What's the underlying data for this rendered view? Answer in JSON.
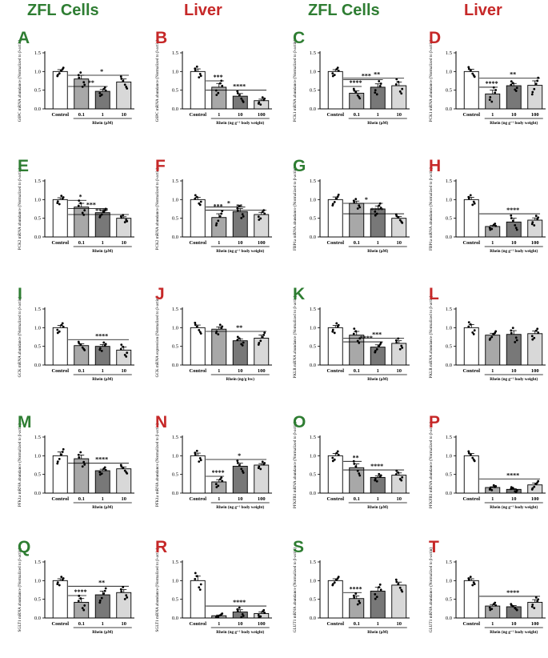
{
  "headers": [
    "ZFL Cells",
    "Liver",
    "ZFL Cells",
    "Liver"
  ],
  "colors": {
    "green": "#2e7d32",
    "red": "#c62828",
    "bar_light": "#e6e6e6",
    "bar_mid": "#a8a8a8",
    "bar_dark": "#777777"
  },
  "chart_data": [
    {
      "letter": "A",
      "type": "bar",
      "ylabel": "G6PC mRNA abundance (Normalized to β-actin)",
      "xlabel": "Rhein (µM)",
      "categories": [
        "Control",
        "0.1",
        "1",
        "10"
      ],
      "values": [
        1.0,
        0.8,
        0.47,
        0.72
      ],
      "errors": [
        0.05,
        0.1,
        0.05,
        0.08
      ],
      "ylim": [
        0,
        1.5
      ],
      "yticks": [
        "0.0",
        "0.5",
        "1.0",
        "1.5"
      ],
      "sig": [
        {
          "a": 0,
          "b": 2,
          "label": "**",
          "y": 0.6
        },
        {
          "a": 0,
          "b": 3,
          "label": "*",
          "y": 0.9
        }
      ]
    },
    {
      "letter": "B",
      "type": "bar",
      "ylabel": "G6PC mRNA abundance (Normalized to β-actin)",
      "xlabel": "Rhein (ng g⁻¹ body weight)",
      "categories": [
        "Control",
        "1",
        "10",
        "100"
      ],
      "values": [
        1.0,
        0.58,
        0.34,
        0.22
      ],
      "errors": [
        0.07,
        0.1,
        0.07,
        0.04
      ],
      "ylim": [
        0,
        1.5
      ],
      "yticks": [
        "0.0",
        "0.5",
        "1.0",
        "1.5"
      ],
      "sig": [
        {
          "a": 0,
          "b": 1,
          "label": "***",
          "y": 0.75
        },
        {
          "a": 0,
          "b": 3,
          "label": "****",
          "y": 0.5
        }
      ]
    },
    {
      "letter": "C",
      "type": "bar",
      "ylabel": "PCK1 mRNA abundance (Normalized to β-actin)",
      "xlabel": "Rhein (µM)",
      "categories": [
        "Control",
        "0.1",
        "1",
        "10"
      ],
      "values": [
        1.0,
        0.42,
        0.58,
        0.62
      ],
      "errors": [
        0.05,
        0.06,
        0.09,
        0.1
      ],
      "ylim": [
        0,
        1.5
      ],
      "yticks": [
        "0.0",
        "0.5",
        "1.0",
        "1.5"
      ],
      "sig": [
        {
          "a": 0,
          "b": 1,
          "label": "****",
          "y": 0.6
        },
        {
          "a": 0,
          "b": 2,
          "label": "***",
          "y": 0.78
        },
        {
          "a": 0,
          "b": 3,
          "label": "**",
          "y": 0.82
        }
      ]
    },
    {
      "letter": "D",
      "type": "bar",
      "ylabel": "PCK1 mRNA abundance (Normalized to β-actin)",
      "xlabel": "Rhein (ng g⁻¹ body weight)",
      "categories": [
        "Control",
        "1",
        "10",
        "100"
      ],
      "values": [
        1.0,
        0.4,
        0.62,
        0.63
      ],
      "errors": [
        0.06,
        0.1,
        0.06,
        0.12
      ],
      "ylim": [
        0,
        1.5
      ],
      "yticks": [
        "0.0",
        "0.5",
        "1.0",
        "1.5"
      ],
      "sig": [
        {
          "a": 0,
          "b": 1,
          "label": "****",
          "y": 0.58
        },
        {
          "a": 0,
          "b": 3,
          "label": "**",
          "y": 0.82
        }
      ]
    },
    {
      "letter": "E",
      "type": "bar",
      "ylabel": "PCK2 mRNA abundance (Normalized to β-actin)",
      "xlabel": "Rhein (µM)",
      "categories": [
        "Control",
        "0.1",
        "1",
        "10"
      ],
      "values": [
        1.0,
        0.8,
        0.65,
        0.5
      ],
      "errors": [
        0.05,
        0.1,
        0.05,
        0.04
      ],
      "ylim": [
        0,
        1.5
      ],
      "yticks": [
        "0.0",
        "0.5",
        "1.0",
        "1.5"
      ],
      "sig": [
        {
          "a": 0,
          "b": 1,
          "label": "*",
          "y": 0.98
        },
        {
          "a": 0,
          "b": 2,
          "label": "***",
          "y": 0.76
        },
        {
          "a": 0,
          "b": 3,
          "label": "****",
          "y": 0.6
        }
      ]
    },
    {
      "letter": "F",
      "type": "bar",
      "ylabel": "PCK2 mRNA abundance (Normalized to β-actin)",
      "xlabel": "Rhein (ng g⁻¹ body weight)",
      "categories": [
        "Control",
        "1",
        "10",
        "100"
      ],
      "values": [
        1.0,
        0.52,
        0.68,
        0.6
      ],
      "errors": [
        0.06,
        0.1,
        0.08,
        0.06
      ],
      "ylim": [
        0,
        1.5
      ],
      "yticks": [
        "0.0",
        "0.5",
        "1.0",
        "1.5"
      ],
      "sig": [
        {
          "a": 0,
          "b": 1,
          "label": "***",
          "y": 0.72
        },
        {
          "a": 0,
          "b": 2,
          "label": "*",
          "y": 0.8
        },
        {
          "a": 0,
          "b": 3,
          "label": "**",
          "y": 0.72
        }
      ]
    },
    {
      "letter": "G",
      "type": "bar",
      "ylabel": "FBP1a mRNA abundance (Normalized to β-actin)",
      "xlabel": "Rhein (µM)",
      "categories": [
        "Control",
        "0.1",
        "1",
        "10"
      ],
      "values": [
        1.0,
        0.9,
        0.75,
        0.5
      ],
      "errors": [
        0.07,
        0.06,
        0.08,
        0.05
      ],
      "ylim": [
        0,
        1.5
      ],
      "yticks": [
        "0.0",
        "0.5",
        "1.0",
        "1.5"
      ],
      "sig": [
        {
          "a": 0,
          "b": 2,
          "label": "*",
          "y": 0.9
        },
        {
          "a": 0,
          "b": 3,
          "label": "****",
          "y": 0.62
        }
      ]
    },
    {
      "letter": "H",
      "type": "bar",
      "ylabel": "FBP1a mRNA abundance (Normalized to β-actin)",
      "xlabel": "Rhein (ng g⁻¹ body weight)",
      "categories": [
        "Control",
        "1",
        "10",
        "100"
      ],
      "values": [
        1.0,
        0.28,
        0.4,
        0.45
      ],
      "errors": [
        0.06,
        0.03,
        0.1,
        0.06
      ],
      "ylim": [
        0,
        1.5
      ],
      "yticks": [
        "0.0",
        "0.5",
        "1.0",
        "1.5"
      ],
      "sig": [
        {
          "a": 0,
          "b": 3,
          "label": "****",
          "y": 0.62
        }
      ]
    },
    {
      "letter": "I",
      "type": "bar",
      "ylabel": "GCK mRNA abundance (Normalized to β-actin)",
      "xlabel": "Rhein (µM)",
      "categories": [
        "Control",
        "0.1",
        "1",
        "10"
      ],
      "values": [
        1.0,
        0.52,
        0.5,
        0.4
      ],
      "errors": [
        0.06,
        0.05,
        0.05,
        0.08
      ],
      "ylim": [
        0,
        1.5
      ],
      "yticks": [
        "0.0",
        "0.5",
        "1.0",
        "1.5"
      ],
      "sig": [
        {
          "a": 0,
          "b": 3,
          "label": "****",
          "y": 0.68
        }
      ]
    },
    {
      "letter": "J",
      "type": "bar",
      "ylabel": "GCK mRNA expression (Normalized to β-actin)",
      "xlabel": "Rhein (ng/g bw)",
      "categories": [
        "Control",
        "1",
        "10",
        "100"
      ],
      "values": [
        1.0,
        0.96,
        0.65,
        0.72
      ],
      "errors": [
        0.07,
        0.06,
        0.05,
        0.08
      ],
      "ylim": [
        0,
        1.5
      ],
      "yticks": [
        "0.0",
        "0.5",
        "1.0",
        "1.5"
      ],
      "sig": [
        {
          "a": 0,
          "b": 3,
          "label": "**",
          "y": 0.9
        }
      ]
    },
    {
      "letter": "K",
      "type": "bar",
      "ylabel": "PKLR mRNA abundance (Normalized to β-actin)",
      "xlabel": "Rhein (µM)",
      "categories": [
        "Control",
        "0.1",
        "1",
        "10"
      ],
      "values": [
        1.0,
        0.8,
        0.48,
        0.58
      ],
      "errors": [
        0.06,
        0.1,
        0.06,
        0.07
      ],
      "ylim": [
        0,
        1.5
      ],
      "yticks": [
        "0.0",
        "0.5",
        "1.0",
        "1.5"
      ],
      "sig": [
        {
          "a": 0,
          "b": 2,
          "label": "****",
          "y": 0.62
        },
        {
          "a": 0,
          "b": 3,
          "label": "***",
          "y": 0.72
        }
      ]
    },
    {
      "letter": "L",
      "type": "bar",
      "ylabel": "PKLR mRNA abundance (Normalized to β-actin)",
      "xlabel": "Rhein (ng g⁻¹ body weight)",
      "categories": [
        "Control",
        "1",
        "10",
        "100"
      ],
      "values": [
        1.0,
        0.8,
        0.82,
        0.84
      ],
      "errors": [
        0.08,
        0.05,
        0.1,
        0.07
      ],
      "ylim": [
        0,
        1.5
      ],
      "yticks": [
        "0.0",
        "0.5",
        "1.0",
        "1.5"
      ],
      "sig": []
    },
    {
      "letter": "M",
      "type": "bar",
      "ylabel": "PFK1a mRNA abundance (Normalized to β-actin)",
      "xlabel": "Rhein (µM)",
      "categories": [
        "Control",
        "0.1",
        "1",
        "10"
      ],
      "values": [
        1.0,
        0.92,
        0.6,
        0.65
      ],
      "errors": [
        0.1,
        0.1,
        0.04,
        0.05
      ],
      "ylim": [
        0,
        1.5
      ],
      "yticks": [
        "0.0",
        "0.5",
        "1.0",
        "1.5"
      ],
      "sig": [
        {
          "a": 0,
          "b": 3,
          "label": "****",
          "y": 0.8
        }
      ]
    },
    {
      "letter": "N",
      "type": "bar",
      "ylabel": "PFK1a mRNA abundance (Normalized to β-actin)",
      "xlabel": "Rhein (ng g⁻¹ body weight)",
      "categories": [
        "Control",
        "1",
        "10",
        "100"
      ],
      "values": [
        1.0,
        0.3,
        0.72,
        0.75
      ],
      "errors": [
        0.07,
        0.06,
        0.08,
        0.04
      ],
      "ylim": [
        0,
        1.5
      ],
      "yticks": [
        "0.0",
        "0.5",
        "1.0",
        "1.5"
      ],
      "sig": [
        {
          "a": 0,
          "b": 1,
          "label": "****",
          "y": 0.45
        },
        {
          "a": 0,
          "b": 3,
          "label": "*",
          "y": 0.9
        }
      ]
    },
    {
      "letter": "O",
      "type": "bar",
      "ylabel": "PFKFB3 mRNA abundance (Normalized to β-actin)",
      "xlabel": "Rhein (µM)",
      "categories": [
        "Control",
        "0.1",
        "1",
        "10"
      ],
      "values": [
        1.0,
        0.68,
        0.42,
        0.48
      ],
      "errors": [
        0.06,
        0.1,
        0.04,
        0.06
      ],
      "ylim": [
        0,
        1.5
      ],
      "yticks": [
        "0.0",
        "0.5",
        "1.0",
        "1.5"
      ],
      "sig": [
        {
          "a": 0,
          "b": 1,
          "label": "**",
          "y": 0.85
        },
        {
          "a": 0,
          "b": 3,
          "label": "****",
          "y": 0.62
        }
      ]
    },
    {
      "letter": "P",
      "type": "bar",
      "ylabel": "PFKFB3 mRNA abundance (Normalized to β-actin)",
      "xlabel": "Rhein (ng g⁻¹ body weight)",
      "categories": [
        "Control",
        "1",
        "10",
        "100"
      ],
      "values": [
        1.0,
        0.15,
        0.1,
        0.22
      ],
      "errors": [
        0.06,
        0.02,
        0.02,
        0.05
      ],
      "ylim": [
        0,
        1.5
      ],
      "yticks": [
        "0.0",
        "0.5",
        "1.0",
        "1.5"
      ],
      "sig": [
        {
          "a": 0,
          "b": 3,
          "label": "****",
          "y": 0.38
        }
      ]
    },
    {
      "letter": "Q",
      "type": "bar",
      "ylabel": "SGLT1 mRNA abundance (Normalized to β-actin)",
      "xlabel": "Rhein (µM)",
      "categories": [
        "Control",
        "0.1",
        "1",
        "10"
      ],
      "values": [
        1.0,
        0.42,
        0.62,
        0.68
      ],
      "errors": [
        0.05,
        0.1,
        0.1,
        0.08
      ],
      "ylim": [
        0,
        1.5
      ],
      "yticks": [
        "0.0",
        "0.5",
        "1.0",
        "1.5"
      ],
      "sig": [
        {
          "a": 0,
          "b": 1,
          "label": "****",
          "y": 0.6
        },
        {
          "a": 0,
          "b": 3,
          "label": "**",
          "y": 0.85
        }
      ]
    },
    {
      "letter": "R",
      "type": "bar",
      "ylabel": "SGLT1 mRNA abundance (Normalized to β-actin)",
      "xlabel": "Rhein (ng g⁻¹ body weight)",
      "categories": [
        "Control",
        "1",
        "10",
        "100"
      ],
      "values": [
        1.0,
        0.06,
        0.16,
        0.12
      ],
      "errors": [
        0.12,
        0.02,
        0.06,
        0.04
      ],
      "ylim": [
        0,
        1.5
      ],
      "yticks": [
        "0.0",
        "0.5",
        "1.0",
        "1.5"
      ],
      "sig": [
        {
          "a": 0,
          "b": 3,
          "label": "****",
          "y": 0.32
        }
      ]
    },
    {
      "letter": "S",
      "type": "bar",
      "ylabel": "GLUT1 mRNA abundance (Normalized to β-actin)",
      "xlabel": "Rhein (µM)",
      "categories": [
        "Control",
        "0.1",
        "1",
        "10"
      ],
      "values": [
        1.0,
        0.52,
        0.72,
        0.88
      ],
      "errors": [
        0.05,
        0.07,
        0.1,
        0.08
      ],
      "ylim": [
        0,
        1.5
      ],
      "yticks": [
        "0.0",
        "0.5",
        "1.0",
        "1.5"
      ],
      "sig": [
        {
          "a": 0,
          "b": 1,
          "label": "****",
          "y": 0.68
        }
      ]
    },
    {
      "letter": "T",
      "type": "bar",
      "ylabel": "GLUT1 mRNA abundance (Normalized to β-actin)",
      "xlabel": "Rhein (ng g⁻¹ body weight)",
      "categories": [
        "Control",
        "1",
        "10",
        "100"
      ],
      "values": [
        1.0,
        0.32,
        0.3,
        0.42
      ],
      "errors": [
        0.05,
        0.04,
        0.03,
        0.07
      ],
      "ylim": [
        0,
        1.5
      ],
      "yticks": [
        "0.0",
        "0.5",
        "1.0",
        "1.5"
      ],
      "sig": [
        {
          "a": 0,
          "b": 3,
          "label": "****",
          "y": 0.58
        }
      ]
    }
  ]
}
